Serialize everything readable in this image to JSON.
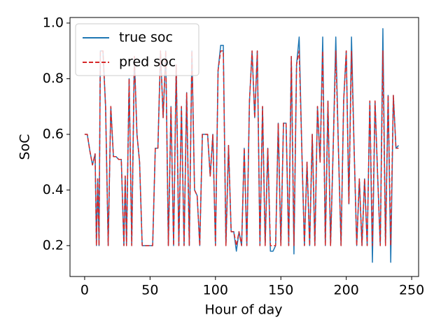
{
  "chart_data": {
    "type": "line",
    "xlabel": "Hour of day",
    "ylabel": "SoC",
    "x": [
      0,
      2,
      4,
      6,
      8,
      9,
      10,
      11,
      12,
      14,
      16,
      18,
      20,
      22,
      24,
      26,
      28,
      30,
      31,
      32,
      34,
      36,
      38,
      40,
      42,
      44,
      46,
      48,
      50,
      52,
      54,
      56,
      58,
      60,
      62,
      64,
      66,
      68,
      70,
      72,
      74,
      76,
      78,
      80,
      82,
      84,
      86,
      88,
      90,
      92,
      94,
      96,
      98,
      100,
      102,
      104,
      106,
      108,
      110,
      112,
      114,
      116,
      118,
      120,
      122,
      124,
      126,
      128,
      130,
      132,
      134,
      136,
      138,
      140,
      142,
      144,
      146,
      148,
      150,
      152,
      154,
      156,
      158,
      160,
      162,
      164,
      166,
      168,
      170,
      172,
      174,
      176,
      178,
      180,
      182,
      184,
      186,
      188,
      190,
      192,
      194,
      196,
      198,
      200,
      202,
      204,
      206,
      208,
      210,
      212,
      214,
      216,
      218,
      220,
      222,
      224,
      226,
      228,
      230,
      232,
      234,
      236,
      238,
      240
    ],
    "series": [
      {
        "name": "true soc",
        "color": "#1f77b4",
        "dash": false,
        "values": [
          0.6,
          0.6,
          0.54,
          0.49,
          0.53,
          0.2,
          0.44,
          0.2,
          0.9,
          0.9,
          0.7,
          0.2,
          0.7,
          0.52,
          0.52,
          0.51,
          0.51,
          0.2,
          0.45,
          0.2,
          0.8,
          0.2,
          0.88,
          0.6,
          0.5,
          0.2,
          0.2,
          0.2,
          0.2,
          0.2,
          0.55,
          0.55,
          0.9,
          0.66,
          0.9,
          0.2,
          0.7,
          0.2,
          0.85,
          0.2,
          0.7,
          0.2,
          0.75,
          0.2,
          0.9,
          0.4,
          0.38,
          0.2,
          0.6,
          0.6,
          0.6,
          0.45,
          0.6,
          0.2,
          0.83,
          0.92,
          0.92,
          0.2,
          0.56,
          0.25,
          0.25,
          0.18,
          0.25,
          0.2,
          0.55,
          0.2,
          0.72,
          0.9,
          0.66,
          0.9,
          0.2,
          0.7,
          0.2,
          0.55,
          0.18,
          0.18,
          0.2,
          0.64,
          0.2,
          0.64,
          0.64,
          0.2,
          0.88,
          0.17,
          0.85,
          0.95,
          0.55,
          0.2,
          0.5,
          0.2,
          0.6,
          0.2,
          0.7,
          0.5,
          0.95,
          0.2,
          0.72,
          0.2,
          0.55,
          0.95,
          0.55,
          0.2,
          0.72,
          0.9,
          0.35,
          0.95,
          0.55,
          0.2,
          0.44,
          0.2,
          0.44,
          0.2,
          0.72,
          0.14,
          0.72,
          0.45,
          0.2,
          0.98,
          0.2,
          0.74,
          0.14,
          0.74,
          0.55,
          0.56
        ]
      },
      {
        "name": "pred soc",
        "color": "#d62728",
        "dash": true,
        "values": [
          0.6,
          0.6,
          0.54,
          0.49,
          0.53,
          0.2,
          0.44,
          0.2,
          0.9,
          0.9,
          0.7,
          0.2,
          0.7,
          0.52,
          0.52,
          0.51,
          0.51,
          0.2,
          0.45,
          0.2,
          0.8,
          0.2,
          0.88,
          0.6,
          0.5,
          0.2,
          0.2,
          0.2,
          0.2,
          0.2,
          0.55,
          0.55,
          0.9,
          0.66,
          0.9,
          0.2,
          0.7,
          0.2,
          0.85,
          0.2,
          0.7,
          0.2,
          0.75,
          0.2,
          0.9,
          0.4,
          0.38,
          0.2,
          0.6,
          0.6,
          0.6,
          0.45,
          0.6,
          0.2,
          0.83,
          0.9,
          0.9,
          0.2,
          0.56,
          0.25,
          0.25,
          0.2,
          0.25,
          0.2,
          0.55,
          0.2,
          0.72,
          0.9,
          0.66,
          0.9,
          0.2,
          0.7,
          0.2,
          0.55,
          0.2,
          0.2,
          0.2,
          0.64,
          0.2,
          0.64,
          0.64,
          0.2,
          0.88,
          0.2,
          0.85,
          0.9,
          0.55,
          0.2,
          0.5,
          0.2,
          0.6,
          0.2,
          0.7,
          0.5,
          0.9,
          0.2,
          0.72,
          0.2,
          0.55,
          0.9,
          0.55,
          0.2,
          0.72,
          0.9,
          0.35,
          0.9,
          0.55,
          0.2,
          0.44,
          0.2,
          0.44,
          0.2,
          0.72,
          0.2,
          0.72,
          0.45,
          0.2,
          0.9,
          0.2,
          0.74,
          0.2,
          0.74,
          0.55,
          0.55
        ]
      }
    ],
    "xlim": [
      -11.2,
      255.3
    ],
    "ylim": [
      0.089,
      1.02
    ],
    "xticks": [
      0,
      50,
      100,
      150,
      200,
      250
    ],
    "yticks": [
      {
        "value": 0.2,
        "label": "0.2"
      },
      {
        "value": 0.4,
        "label": "0.4"
      },
      {
        "value": 0.6,
        "label": "0.6"
      },
      {
        "value": 0.8,
        "label": "0.8"
      },
      {
        "value": 1.0,
        "label": "1.0"
      }
    ],
    "legend": "upper-left",
    "grid": false
  }
}
